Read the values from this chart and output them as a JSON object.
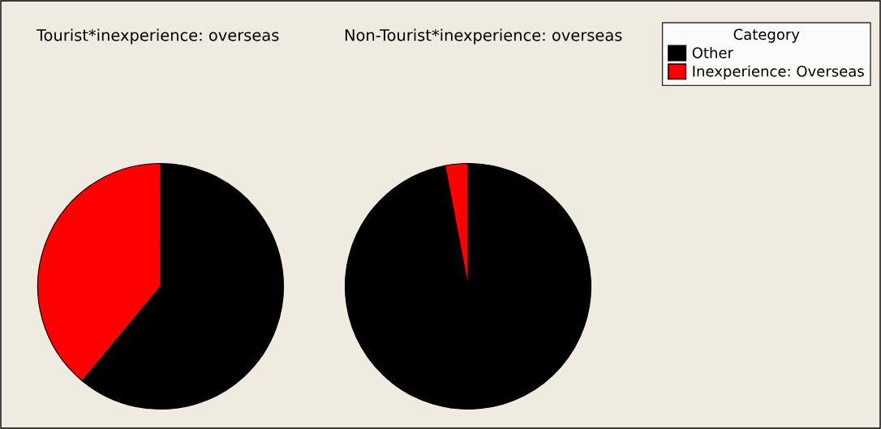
{
  "chart_data": [
    {
      "type": "pie",
      "title": "Tourist*inexperience: overseas",
      "categories": [
        "Other",
        "Inexperience: Overseas"
      ],
      "values": [
        61,
        39
      ],
      "colors": [
        "#000000",
        "#ff0000"
      ],
      "legend": "top right",
      "legend_title": "Category"
    },
    {
      "type": "pie",
      "title": "Non-Tourist*inexperience: overseas",
      "categories": [
        null,
        null
      ],
      "values": [
        97,
        3
      ],
      "colors": [
        "#000000",
        "#ff0000"
      ]
    }
  ]
}
